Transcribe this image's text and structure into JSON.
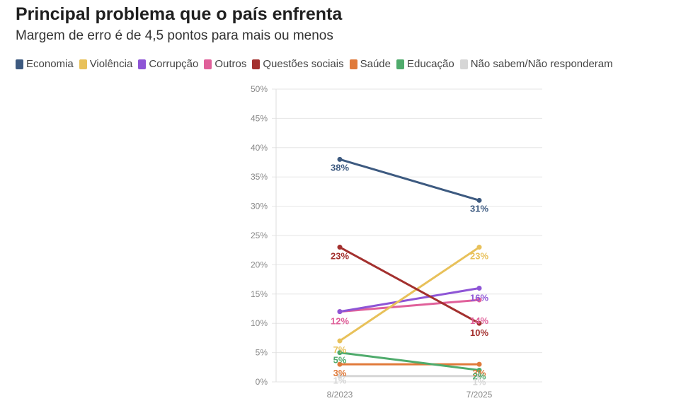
{
  "chart_data": {
    "type": "line",
    "title": "Principal problema que o país enfrenta",
    "subtitle": "Margem de erro é de 4,5 pontos para mais ou menos",
    "x": [
      "8/2023",
      "7/2025"
    ],
    "ylim": [
      0,
      50
    ],
    "yticks": [
      "0%",
      "5%",
      "10%",
      "15%",
      "20%",
      "25%",
      "30%",
      "35%",
      "40%",
      "45%",
      "50%"
    ],
    "yticks_values": [
      0,
      5,
      10,
      15,
      20,
      25,
      30,
      35,
      40,
      45,
      50
    ],
    "grid": true,
    "legend_position": "top-left",
    "series": [
      {
        "name": "Economia",
        "color": "#3d5a80",
        "values": [
          38,
          31
        ],
        "labels": [
          "38%",
          "31%"
        ]
      },
      {
        "name": "Violência",
        "color": "#e8c15a",
        "values": [
          7,
          23
        ],
        "labels": [
          "7%",
          "23%"
        ]
      },
      {
        "name": "Corrupção",
        "color": "#8e55d6",
        "values": [
          12,
          16
        ],
        "labels": [
          "",
          "16%"
        ]
      },
      {
        "name": "Outros",
        "color": "#e0609a",
        "values": [
          12,
          14
        ],
        "labels": [
          "12%",
          "14%"
        ]
      },
      {
        "name": "Questões sociais",
        "color": "#a3302e",
        "values": [
          23,
          10
        ],
        "labels": [
          "23%",
          "10%"
        ]
      },
      {
        "name": "Saúde",
        "color": "#e07a3a",
        "values": [
          3,
          3
        ],
        "labels": [
          "3%",
          "3%"
        ]
      },
      {
        "name": "Educação",
        "color": "#4fab6c",
        "values": [
          5,
          2
        ],
        "labels": [
          "5%",
          "2%"
        ]
      },
      {
        "name": "Não sabem/Não responderam",
        "color": "#d6d6d6",
        "values": [
          1,
          1
        ],
        "labels": [
          "1%",
          "1%"
        ]
      }
    ]
  }
}
